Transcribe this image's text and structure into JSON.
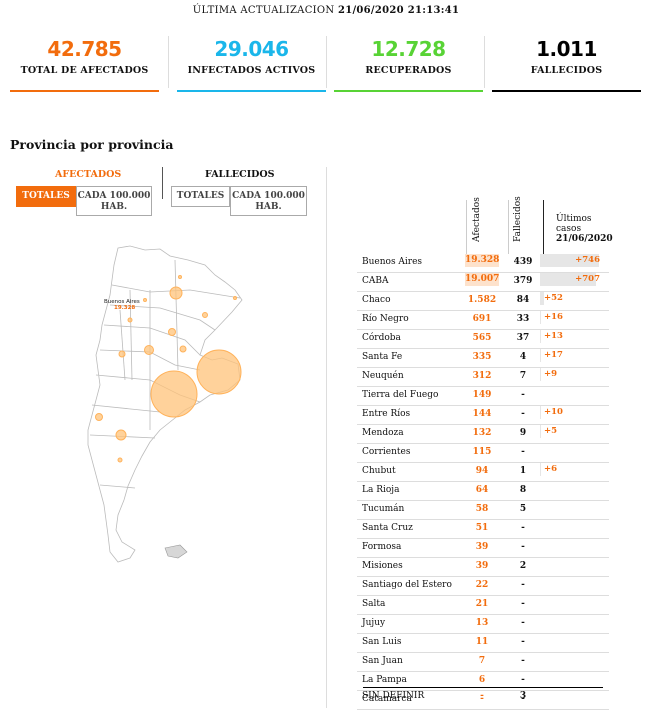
{
  "header": {
    "update_label": "ÚLTIMA ACTUALIZACION",
    "update_time": "21/06/2020 21:13:41"
  },
  "stats": [
    {
      "value": "42.785",
      "label": "TOTAL DE AFECTADOS",
      "color": "#f26c0d"
    },
    {
      "value": "29.046",
      "label": "INFECTADOS ACTIVOS",
      "color": "#1ab6ea"
    },
    {
      "value": "12.728",
      "label": "RECUPERADOS",
      "color": "#58d335"
    },
    {
      "value": "1.011",
      "label": "FALLECIDOS",
      "color": "#000000"
    }
  ],
  "section_title": "Provincia por provincia",
  "filters": {
    "afectados": {
      "title": "AFECTADOS",
      "totales": "TOTALES",
      "cada": "CADA 100.000 HAB."
    },
    "fallecidos": {
      "title": "FALLECIDOS",
      "totales": "TOTALES",
      "cada": "CADA 100.000 HAB."
    }
  },
  "map": {
    "label_name": "Buenos Aires",
    "label_value": "19.328"
  },
  "table": {
    "col_afectados": "Afectados",
    "col_fallecidos": "Fallecidos",
    "col_ultimos": "Últimos casos",
    "col_ultimos_date": "21/06/2020",
    "rows": [
      {
        "name": "Buenos Aires",
        "aff": "19.328",
        "dead": "439",
        "new": "+746",
        "bar": 0.95
      },
      {
        "name": "CABA",
        "aff": "19.007",
        "dead": "379",
        "new": "+707",
        "bar": 0.9
      },
      {
        "name": "Chaco",
        "aff": "1.582",
        "dead": "84",
        "new": "+52",
        "bar": 0.07
      },
      {
        "name": "Río Negro",
        "aff": "691",
        "dead": "33",
        "new": "+16",
        "bar": 0.02
      },
      {
        "name": "Córdoba",
        "aff": "565",
        "dead": "37",
        "new": "+13",
        "bar": 0.02
      },
      {
        "name": "Santa Fe",
        "aff": "335",
        "dead": "4",
        "new": "+17",
        "bar": 0.02
      },
      {
        "name": "Neuquén",
        "aff": "312",
        "dead": "7",
        "new": "+9",
        "bar": 0.01
      },
      {
        "name": "Tierra del Fuego",
        "aff": "149",
        "dead": "-",
        "new": "",
        "bar": 0
      },
      {
        "name": "Entre Ríos",
        "aff": "144",
        "dead": "-",
        "new": "+10",
        "bar": 0.01
      },
      {
        "name": "Mendoza",
        "aff": "132",
        "dead": "9",
        "new": "+5",
        "bar": 0.01
      },
      {
        "name": "Corrientes",
        "aff": "115",
        "dead": "-",
        "new": "",
        "bar": 0
      },
      {
        "name": "Chubut",
        "aff": "94",
        "dead": "1",
        "new": "+6",
        "bar": 0.01
      },
      {
        "name": "La Rioja",
        "aff": "64",
        "dead": "8",
        "new": "",
        "bar": 0
      },
      {
        "name": "Tucumán",
        "aff": "58",
        "dead": "5",
        "new": "",
        "bar": 0
      },
      {
        "name": "Santa Cruz",
        "aff": "51",
        "dead": "-",
        "new": "",
        "bar": 0
      },
      {
        "name": "Formosa",
        "aff": "39",
        "dead": "-",
        "new": "",
        "bar": 0
      },
      {
        "name": "Misiones",
        "aff": "39",
        "dead": "2",
        "new": "",
        "bar": 0
      },
      {
        "name": "Santiago del Estero",
        "aff": "22",
        "dead": "-",
        "new": "",
        "bar": 0
      },
      {
        "name": "Salta",
        "aff": "21",
        "dead": "-",
        "new": "",
        "bar": 0
      },
      {
        "name": "Jujuy",
        "aff": "13",
        "dead": "-",
        "new": "",
        "bar": 0
      },
      {
        "name": "San Luis",
        "aff": "11",
        "dead": "-",
        "new": "",
        "bar": 0
      },
      {
        "name": "San Juan",
        "aff": "7",
        "dead": "-",
        "new": "",
        "bar": 0
      },
      {
        "name": "La Pampa",
        "aff": "6",
        "dead": "-",
        "new": "",
        "bar": 0
      },
      {
        "name": "Catamarca",
        "aff": "-",
        "dead": "-",
        "new": "",
        "bar": 0
      }
    ],
    "footer": {
      "name": "SIN DEFINIR",
      "aff": "-",
      "dead": "3"
    }
  }
}
